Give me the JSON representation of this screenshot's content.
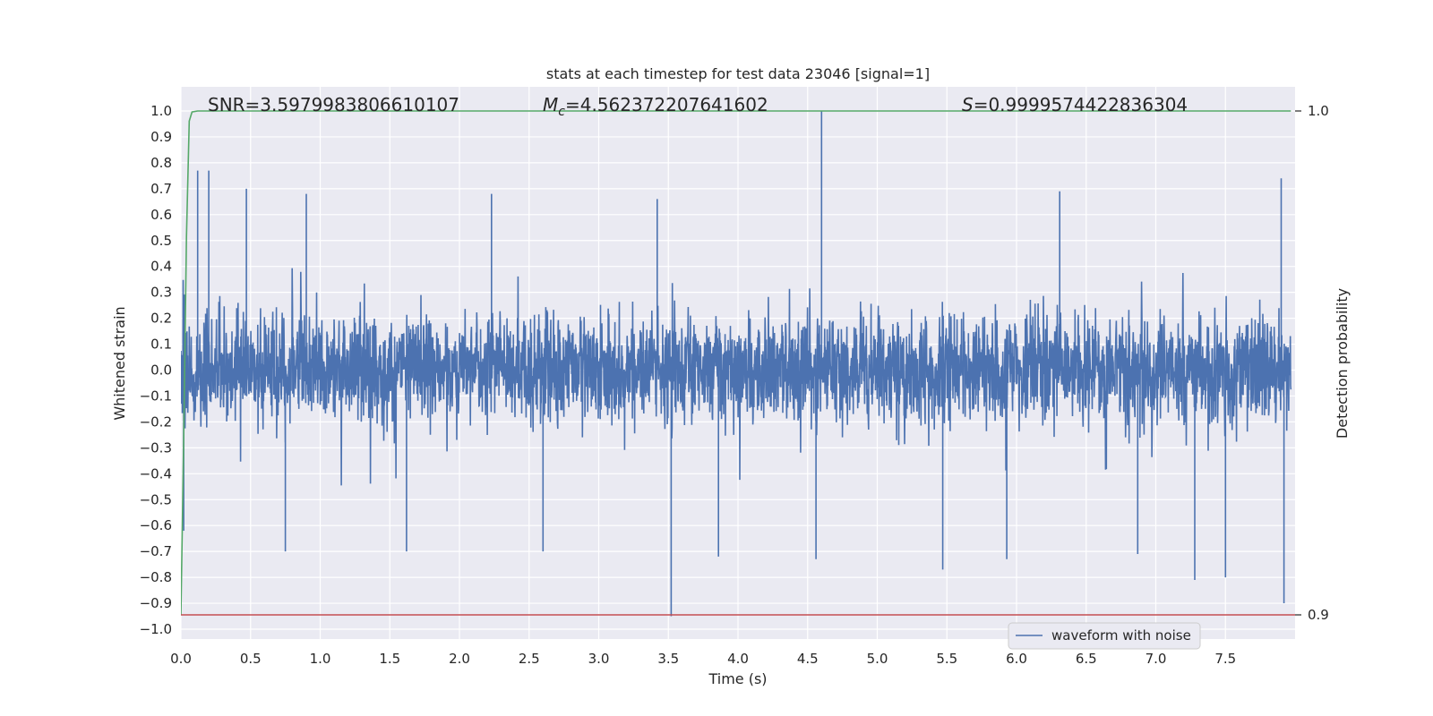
{
  "chart_data": {
    "type": "line",
    "title": "stats at each timestep for test data 23046 [signal=1]",
    "xlabel": "Time (s)",
    "ylabel": "Whitened strain",
    "y2label": "Detection probability",
    "xlim": [
      0.0,
      8.0
    ],
    "ylim": [
      -1.05,
      1.05
    ],
    "y2lim": [
      0.8995,
      1.0005
    ],
    "xticks": [
      0.0,
      0.5,
      1.0,
      1.5,
      2.0,
      2.5,
      3.0,
      3.5,
      4.0,
      4.5,
      5.0,
      5.5,
      6.0,
      6.5,
      7.0,
      7.5
    ],
    "yticks": [
      1.0,
      0.9,
      0.8,
      0.7,
      0.6,
      0.5,
      0.4,
      0.3,
      0.2,
      0.1,
      0.0,
      -0.1,
      -0.2,
      -0.3,
      -0.4,
      -0.5,
      -0.6,
      -0.7,
      -0.8,
      -0.9,
      -1.0
    ],
    "y2ticks": [
      1.0,
      0.9
    ],
    "grid": true,
    "legend": {
      "placement": "lower-right",
      "entries": [
        "waveform with noise"
      ]
    },
    "annotations": {
      "snr": "SNR=3.5979983806610107",
      "mc_symbol": "M",
      "mc_sub": "c",
      "mc_value": "=4.562372207641602",
      "s_symbol": "S",
      "s_value": "=0.9999574422836304"
    },
    "colors": {
      "waveform": "#4c72b0",
      "probability": "#55a868",
      "threshold": "#c44e52",
      "background": "#eaeaf2",
      "grid": "#ffffff"
    },
    "series": [
      {
        "name": "waveform with noise",
        "axis": "left",
        "style": "dense-noise",
        "x_range": [
          0.0,
          7.97
        ],
        "envelope_typical": 0.3,
        "peaks": [
          {
            "x": 0.12,
            "y": 0.77
          },
          {
            "x": 0.2,
            "y": 0.77
          },
          {
            "x": 0.47,
            "y": 0.7
          },
          {
            "x": 0.9,
            "y": 0.68
          },
          {
            "x": 2.23,
            "y": 0.68
          },
          {
            "x": 3.42,
            "y": 0.66
          },
          {
            "x": 4.6,
            "y": 1.0
          },
          {
            "x": 6.31,
            "y": 0.69
          },
          {
            "x": 7.9,
            "y": 0.74
          },
          {
            "x": 3.52,
            "y": -0.95
          },
          {
            "x": 4.56,
            "y": -0.73
          },
          {
            "x": 5.47,
            "y": -0.77
          },
          {
            "x": 7.28,
            "y": -0.81
          },
          {
            "x": 7.5,
            "y": -0.8
          },
          {
            "x": 7.92,
            "y": -0.9
          },
          {
            "x": 0.02,
            "y": -0.62
          },
          {
            "x": 0.75,
            "y": -0.7
          },
          {
            "x": 1.62,
            "y": -0.7
          },
          {
            "x": 2.6,
            "y": -0.7
          },
          {
            "x": 3.86,
            "y": -0.72
          },
          {
            "x": 5.93,
            "y": -0.73
          },
          {
            "x": 6.87,
            "y": -0.71
          }
        ]
      },
      {
        "name": "detection probability",
        "axis": "right",
        "x": [
          0.0,
          0.02,
          0.04,
          0.06,
          0.08,
          0.12,
          0.2,
          7.97
        ],
        "values": [
          0.9,
          0.935,
          0.975,
          0.998,
          0.9998,
          1.0,
          1.0,
          1.0
        ]
      },
      {
        "name": "threshold",
        "axis": "right",
        "x": [
          0.0,
          8.0
        ],
        "values": [
          0.9,
          0.9
        ]
      }
    ]
  }
}
